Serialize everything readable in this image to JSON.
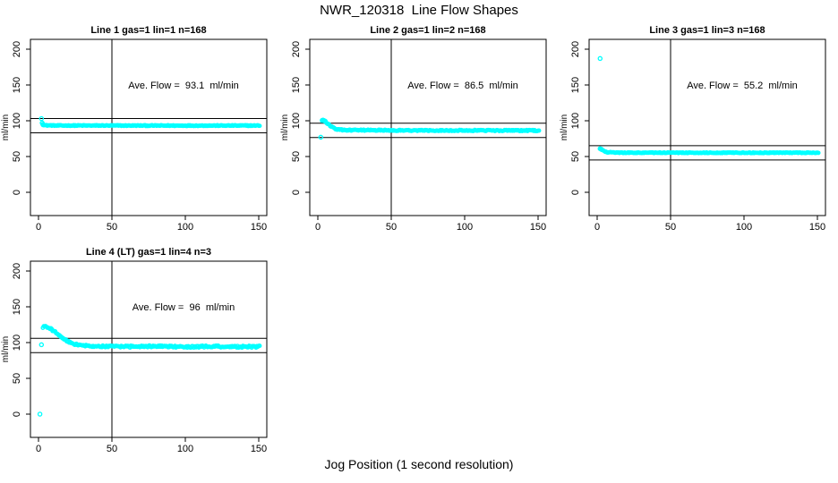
{
  "page": {
    "title": "NWR_120318  Line Flow Shapes",
    "xlabel": "Jog Position (1 second resolution)",
    "background_color": "#FFFFFF"
  },
  "chart_data": {
    "type": "scatter",
    "title": "NWR_120318  Line Flow Shapes",
    "xlabel": "Jog Position (1 second resolution)",
    "ylabel": "ml/min",
    "point_color": "#00FFFF",
    "axis_color": "#000000",
    "marker": "open-circle",
    "grid": false,
    "legend": "none",
    "x_ticks": [
      "0",
      "50",
      "100",
      "150"
    ],
    "y_ticks": [
      "0",
      "50",
      "100",
      "150",
      "200"
    ],
    "x_tick_values": [
      0,
      50,
      100,
      150
    ],
    "y_tick_values": [
      0,
      50,
      100,
      150,
      200
    ],
    "xlim": [
      -5.5,
      155.5
    ],
    "ylim": [
      -32.5,
      213.75
    ],
    "charts": [
      {
        "title": "Line 1 gas=1 lin=1 n=168",
        "annotation": "Ave. Flow =  93.1  ml/min",
        "ave_flow_ml_min": 93.1,
        "gas": 1,
        "lin": 1,
        "n": 168,
        "ref_lines_y": [
          103.1,
          83.1
        ],
        "vline_x": 50,
        "points": [
          [
            2,
            103
          ],
          [
            2.5,
            97
          ],
          [
            3,
            95
          ]
        ],
        "band": {
          "x_start": 3,
          "x_end": 151,
          "noise": 0.55,
          "profile": [
            [
              3,
              94.5
            ],
            [
              5,
              93.6
            ],
            [
              10,
              93.3
            ],
            [
              80,
              93.2
            ],
            [
              151,
              93.2
            ]
          ]
        }
      },
      {
        "title": "Line 2 gas=1 lin=2 n=168",
        "annotation": "Ave. Flow =  86.5  ml/min",
        "ave_flow_ml_min": 86.5,
        "gas": 1,
        "lin": 2,
        "n": 168,
        "ref_lines_y": [
          96.5,
          76.5
        ],
        "vline_x": 50,
        "points": [
          [
            2,
            77
          ],
          [
            3,
            100.5
          ],
          [
            3.5,
            101
          ],
          [
            4,
            100.5
          ],
          [
            5,
            99.5
          ]
        ],
        "band": {
          "x_start": 3,
          "x_end": 151,
          "noise": 0.8,
          "profile": [
            [
              3,
              100
            ],
            [
              5,
              99
            ],
            [
              7,
              95.5
            ],
            [
              9,
              92
            ],
            [
              11,
              89.5
            ],
            [
              13,
              88
            ],
            [
              16,
              87.2
            ],
            [
              20,
              86.8
            ],
            [
              60,
              86.5
            ],
            [
              151,
              86.3
            ]
          ]
        }
      },
      {
        "title": "Line 3 gas=1 lin=3 n=168",
        "annotation": "Ave. Flow =  55.2  ml/min",
        "ave_flow_ml_min": 55.2,
        "gas": 1,
        "lin": 3,
        "n": 168,
        "ref_lines_y": [
          65.2,
          45.2
        ],
        "vline_x": 50,
        "points": [
          [
            2,
            187
          ],
          [
            2,
            61
          ],
          [
            3,
            60
          ]
        ],
        "band": {
          "x_start": 2.5,
          "x_end": 151,
          "noise": 0.55,
          "profile": [
            [
              2.5,
              60.5
            ],
            [
              4,
              58.5
            ],
            [
              6,
              56.5
            ],
            [
              8,
              55.8
            ],
            [
              12,
              55.4
            ],
            [
              151,
              55.2
            ]
          ]
        }
      },
      {
        "title": "Line 4 (LT) gas=1 lin=4 n=3",
        "annotation": "Ave. Flow =  96  ml/min",
        "ave_flow_ml_min": 96,
        "gas": 1,
        "lin": 4,
        "n": 3,
        "ref_lines_y": [
          106,
          86
        ],
        "vline_x": 50,
        "points": [
          [
            1,
            0
          ],
          [
            2,
            97
          ]
        ],
        "band": {
          "x_start": 3,
          "x_end": 151,
          "noise": 1.3,
          "profile": [
            [
              3,
              121.5
            ],
            [
              5,
              123
            ],
            [
              7,
              121
            ],
            [
              9,
              118
            ],
            [
              11,
              115
            ],
            [
              13,
              112
            ],
            [
              15,
              109
            ],
            [
              17,
              106
            ],
            [
              19,
              103
            ],
            [
              21,
              100.3
            ],
            [
              24,
              98
            ],
            [
              28,
              96.3
            ],
            [
              34,
              95.2
            ],
            [
              45,
              94.7
            ],
            [
              60,
              94.3
            ],
            [
              80,
              94.9
            ],
            [
              100,
              94.1
            ],
            [
              120,
              94.6
            ],
            [
              135,
              94.0
            ],
            [
              151,
              94.3
            ]
          ]
        }
      }
    ]
  }
}
